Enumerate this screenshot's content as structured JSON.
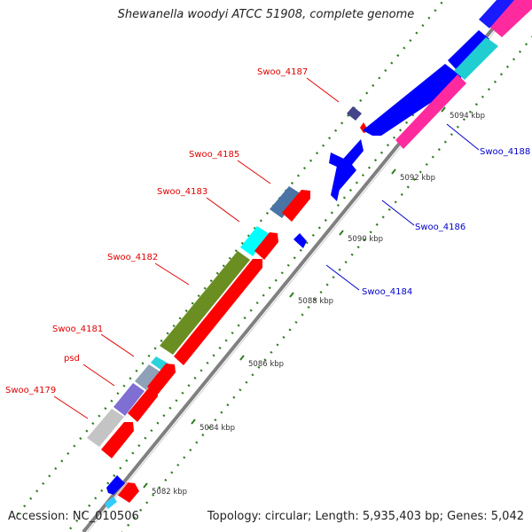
{
  "title": "Shewanella woodyi ATCC 51908, complete genome",
  "footer": {
    "accession": "Accession: NC_010506",
    "summary": "Topology: circular; Length: 5,935,403 bp; Genes: 5,042"
  },
  "colors": {
    "forward_label": "#e00000",
    "reverse_label": "#0000cc",
    "backbone": "#808080",
    "tick_dots": "#2e7d1f"
  },
  "ticks": [
    "5082 kbp",
    "5084 kbp",
    "5086 kbp",
    "5088 kbp",
    "5090 kbp",
    "5092 kbp",
    "5094 kbp"
  ],
  "labels": [
    {
      "text": "Swoo_4187",
      "strand": "forward"
    },
    {
      "text": "Swoo_4185",
      "strand": "forward"
    },
    {
      "text": "Swoo_4183",
      "strand": "forward"
    },
    {
      "text": "Swoo_4182",
      "strand": "forward"
    },
    {
      "text": "Swoo_4181",
      "strand": "forward"
    },
    {
      "text": "psd",
      "strand": "forward"
    },
    {
      "text": "Swoo_4179",
      "strand": "forward"
    },
    {
      "text": "Swoo_4188",
      "strand": "reverse"
    },
    {
      "text": "Swoo_4186",
      "strand": "reverse"
    },
    {
      "text": "Swoo_4184",
      "strand": "reverse"
    }
  ]
}
